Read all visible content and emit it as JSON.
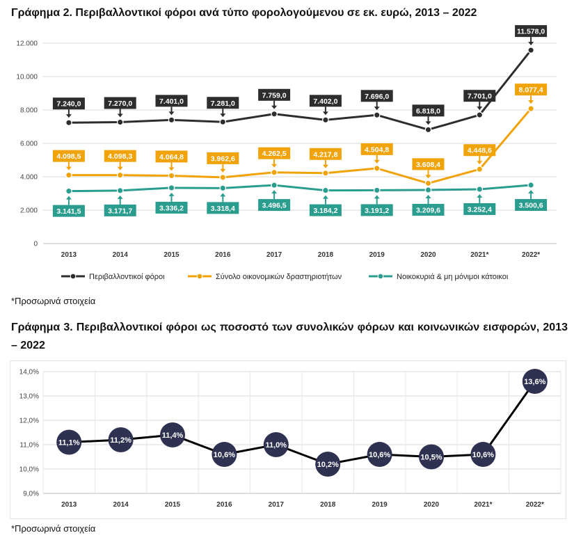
{
  "chart1": {
    "title": "Γράφημα 2. Περιβαλλοντικοί φόροι ανά τύπο φορολογούμενου σε εκ. ευρώ, 2013 – 2022",
    "note": "*Προσωρινά στοιχεία"
  },
  "chart2": {
    "title": "Γράφημα 3. Περιβαλλοντικοί φόροι ως ποσοστό των συνολικών φόρων και κοινωνικών εισφορών, 2013 – 2022",
    "note": "*Προσωρινά στοιχεία"
  },
  "chart_data": [
    {
      "type": "line",
      "title": "Γράφημα 2. Περιβαλλοντικοί φόροι ανά τύπο φορολογούμενου σε εκ. ευρώ, 2013 – 2022",
      "categories": [
        "2013",
        "2014",
        "2015",
        "2016",
        "2017",
        "2018",
        "2019",
        "2020",
        "2021*",
        "2022*"
      ],
      "ylim": [
        0,
        12000
      ],
      "yticks": [
        0,
        2000,
        4000,
        6000,
        8000,
        10000,
        12000
      ],
      "ytick_labels": [
        "0",
        "2.000",
        "4.000",
        "6.000",
        "8.000",
        "10.000",
        "12.000"
      ],
      "grid": true,
      "legend": "bottom",
      "series": [
        {
          "name": "Περιβαλλοντικοί φόροι",
          "color": "#2d2d2d",
          "values": [
            7240.0,
            7270.0,
            7401.0,
            7281.0,
            7759.0,
            7402.0,
            7696.0,
            6818.0,
            7701.0,
            11578.0
          ],
          "labels": [
            "7.240,0",
            "7.270,0",
            "7.401,0",
            "7.281,0",
            "7.759,0",
            "7.402,0",
            "7.696,0",
            "6.818,0",
            "7.701,0",
            "11.578,0"
          ],
          "label_position": "above"
        },
        {
          "name": "Σύνολο οικονομικών δραστηριοτήτων",
          "color": "#f0a30a",
          "values": [
            4098.5,
            4098.3,
            4064.8,
            3962.6,
            4262.5,
            4217.8,
            4504.8,
            3608.4,
            4448.6,
            8077.4
          ],
          "labels": [
            "4.098,5",
            "4.098,3",
            "4.064,8",
            "3.962,6",
            "4.262,5",
            "4.217,8",
            "4.504,8",
            "3.608,4",
            "4.448,6",
            "8.077,4"
          ],
          "label_position": "above"
        },
        {
          "name": "Νοικοκυριά & μη μόνιμοι κάτοικοι",
          "color": "#2a9d8f",
          "values": [
            3141.5,
            3171.7,
            3336.2,
            3318.4,
            3496.5,
            3184.2,
            3191.2,
            3209.6,
            3252.4,
            3500.6
          ],
          "labels": [
            "3.141,5",
            "3.171,7",
            "3.336,2",
            "3.318,4",
            "3.496,5",
            "3.184,2",
            "3.191,2",
            "3.209,6",
            "3.252,4",
            "3.500,6"
          ],
          "label_position": "below"
        }
      ]
    },
    {
      "type": "line",
      "title": "Γράφημα 3. Περιβαλλοντικοί φόροι ως ποσοστό των συνολικών φόρων και κοινωνικών εισφορών, 2013 – 2022",
      "categories": [
        "2013",
        "2014",
        "2015",
        "2016",
        "2017",
        "2018",
        "2019",
        "2020",
        "2021*",
        "2022*"
      ],
      "ylim": [
        9.0,
        14.0
      ],
      "yticks": [
        9,
        10,
        11,
        12,
        13,
        14
      ],
      "ytick_labels": [
        "9,0%",
        "10,0%",
        "11,0%",
        "12,0%",
        "13,0%",
        "14,0%"
      ],
      "grid": true,
      "series": [
        {
          "color": "#2f3150",
          "values": [
            11.1,
            11.2,
            11.4,
            10.6,
            11.0,
            10.2,
            10.6,
            10.5,
            10.6,
            13.6
          ],
          "labels": [
            "11,1%",
            "11,2%",
            "11,4%",
            "10,6%",
            "11,0%",
            "10,2%",
            "10,6%",
            "10,5%",
            "10,6%",
            "13,6%"
          ]
        }
      ]
    }
  ]
}
